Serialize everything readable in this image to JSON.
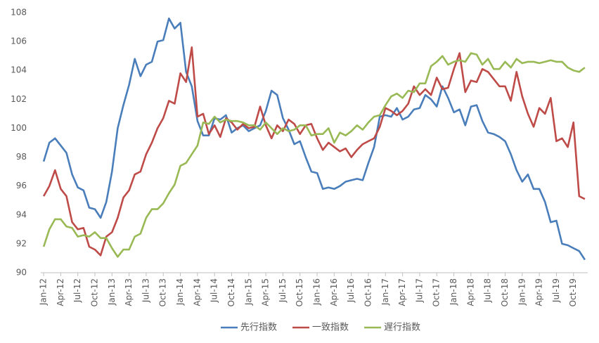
{
  "chart_data": {
    "type": "line",
    "categories": [
      "Jan-12",
      null,
      null,
      "Apr-12",
      null,
      null,
      "Jul-12",
      null,
      null,
      "Oct-12",
      null,
      null,
      "Jan-13",
      null,
      null,
      "Apr-13",
      null,
      null,
      "Jul-13",
      null,
      null,
      "Oct-13",
      null,
      null,
      "Jan-14",
      null,
      null,
      "Apr-14",
      null,
      null,
      "Jul-14",
      null,
      null,
      "Oct-14",
      null,
      null,
      "Jan-15",
      null,
      null,
      "Apr-15",
      null,
      null,
      "Jul-15",
      null,
      null,
      "Oct-15",
      null,
      null,
      "Jan-16",
      null,
      null,
      "Apr-16",
      null,
      null,
      "Jul-16",
      null,
      null,
      "Oct-16",
      null,
      null,
      "Jan-17",
      null,
      null,
      "Apr-17",
      null,
      null,
      "Jul-17",
      null,
      null,
      "Oct-17",
      null,
      null,
      "Jan-18",
      null,
      null,
      "Apr-18",
      null,
      null,
      "Jul-18",
      null,
      null,
      "Oct-18",
      null,
      null,
      "Jan-19",
      null,
      null,
      "Apr-19",
      null,
      null,
      "Jul-19",
      null,
      null,
      "Oct-19",
      null,
      null
    ],
    "series": [
      {
        "name": "先行指数",
        "color": "#4a7ebb",
        "values": [
          97.7,
          99.0,
          99.3,
          98.8,
          98.3,
          96.8,
          95.9,
          95.7,
          94.5,
          94.4,
          93.8,
          94.9,
          97.0,
          100.0,
          101.6,
          103.0,
          104.8,
          103.6,
          104.4,
          104.6,
          106.0,
          106.1,
          107.6,
          106.9,
          107.3,
          103.9,
          102.9,
          100.5,
          99.5,
          99.5,
          100.7,
          100.6,
          100.9,
          99.7,
          100.0,
          100.2,
          99.8,
          100.0,
          100.2,
          101.2,
          102.6,
          102.3,
          100.7,
          99.9,
          98.9,
          99.1,
          98.0,
          97.0,
          96.9,
          95.8,
          95.9,
          95.8,
          96.0,
          96.3,
          96.4,
          96.5,
          96.4,
          97.6,
          98.7,
          100.8,
          100.9,
          100.8,
          101.4,
          100.6,
          100.8,
          101.3,
          101.4,
          102.3,
          102.0,
          101.5,
          102.9,
          102.1,
          101.1,
          101.3,
          100.2,
          101.5,
          101.6,
          100.5,
          99.7,
          99.6,
          99.4,
          99.1,
          98.2,
          97.1,
          96.3,
          96.8,
          95.8,
          95.8,
          94.9,
          93.5,
          93.6,
          92.0,
          91.9,
          91.7,
          91.5,
          90.9
        ]
      },
      {
        "name": "一致指数",
        "color": "#be4b48",
        "values": [
          95.3,
          96.0,
          97.1,
          95.8,
          95.3,
          93.5,
          93.0,
          93.1,
          91.8,
          91.6,
          91.2,
          92.5,
          92.8,
          93.8,
          95.2,
          95.7,
          96.8,
          97.0,
          98.2,
          99.0,
          100.0,
          100.7,
          101.9,
          101.7,
          103.8,
          103.2,
          105.6,
          100.8,
          101.0,
          99.6,
          100.2,
          99.4,
          100.7,
          100.4,
          99.9,
          100.3,
          100.0,
          100.1,
          101.5,
          100.2,
          99.3,
          100.2,
          99.8,
          100.6,
          100.3,
          99.6,
          100.2,
          100.3,
          99.3,
          98.5,
          99.0,
          98.7,
          98.4,
          98.6,
          98.0,
          98.5,
          98.9,
          99.1,
          99.3,
          100.1,
          101.4,
          101.2,
          100.9,
          101.2,
          101.7,
          102.9,
          102.3,
          102.7,
          102.3,
          103.5,
          102.7,
          102.8,
          104.1,
          105.2,
          102.5,
          103.3,
          103.2,
          104.1,
          103.9,
          103.4,
          102.9,
          102.9,
          101.9,
          103.9,
          102.2,
          101.0,
          100.1,
          101.4,
          101.0,
          102.1,
          99.1,
          99.3,
          98.7,
          100.4,
          95.3,
          95.1
        ]
      },
      {
        "name": "遅行指数",
        "color": "#98b954",
        "values": [
          91.8,
          93.0,
          93.7,
          93.7,
          93.2,
          93.1,
          92.5,
          92.6,
          92.5,
          92.8,
          92.4,
          92.4,
          91.7,
          91.1,
          91.6,
          91.6,
          92.5,
          92.7,
          93.8,
          94.4,
          94.4,
          94.8,
          95.5,
          96.1,
          97.4,
          97.6,
          98.2,
          98.8,
          100.4,
          100.3,
          100.8,
          100.4,
          100.6,
          100.5,
          100.5,
          100.4,
          100.2,
          100.2,
          99.9,
          100.4,
          100.0,
          99.6,
          100.0,
          99.8,
          99.9,
          100.2,
          100.2,
          99.5,
          99.6,
          99.6,
          100.0,
          99.0,
          99.7,
          99.5,
          99.8,
          100.2,
          99.9,
          100.4,
          100.8,
          100.9,
          101.6,
          102.2,
          102.4,
          102.1,
          102.6,
          102.5,
          103.1,
          103.1,
          104.3,
          104.6,
          105.0,
          104.4,
          104.6,
          104.7,
          104.6,
          105.2,
          105.1,
          104.4,
          104.8,
          104.1,
          104.1,
          104.6,
          104.2,
          104.8,
          104.5,
          104.6,
          104.6,
          104.5,
          104.6,
          104.7,
          104.6,
          104.6,
          104.2,
          104.0,
          103.9,
          104.2
        ]
      }
    ],
    "ylim": [
      90,
      108
    ],
    "yticks": [
      90,
      92,
      94,
      96,
      98,
      100,
      102,
      104,
      106,
      108
    ],
    "grid": false,
    "legend": "bottom"
  }
}
